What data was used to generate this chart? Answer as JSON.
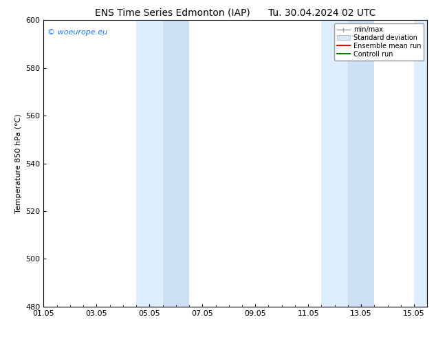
{
  "title_left": "ENS Time Series Edmonton (IAP)",
  "title_right": "Tu. 30.04.2024 02 UTC",
  "ylabel": "Temperature 850 hPa (°C)",
  "xlim": [
    0,
    14.5
  ],
  "ylim": [
    480,
    600
  ],
  "yticks": [
    480,
    500,
    520,
    540,
    560,
    580,
    600
  ],
  "xtick_labels": [
    "01.05",
    "03.05",
    "05.05",
    "07.05",
    "09.05",
    "11.05",
    "13.05",
    "15.05"
  ],
  "xtick_positions": [
    0,
    2,
    4,
    6,
    8,
    10,
    12,
    14
  ],
  "shaded_regions": [
    {
      "xmin": 3.5,
      "xmax": 4.5,
      "color": "#ddeeff"
    },
    {
      "xmin": 4.5,
      "xmax": 5.5,
      "color": "#cce0f5"
    },
    {
      "xmin": 10.5,
      "xmax": 11.5,
      "color": "#ddeeff"
    },
    {
      "xmin": 11.5,
      "xmax": 12.5,
      "color": "#cce0f5"
    },
    {
      "xmin": 14.0,
      "xmax": 14.5,
      "color": "#ddeeff"
    }
  ],
  "watermark_text": "© woeurope.eu",
  "watermark_color": "#1a75ff",
  "legend_items": [
    {
      "label": "min/max",
      "color": "#aaaaaa",
      "style": "minmax"
    },
    {
      "label": "Standard deviation",
      "color": "#d6eaf8",
      "style": "patch"
    },
    {
      "label": "Ensemble mean run",
      "color": "red",
      "style": "line",
      "lw": 1.5
    },
    {
      "label": "Controll run",
      "color": "green",
      "style": "line",
      "lw": 1.5
    }
  ],
  "bg_color": "#ffffff",
  "plot_bg_color": "#ffffff",
  "border_color": "#000000",
  "title_fontsize": 10,
  "tick_fontsize": 8,
  "ylabel_fontsize": 8,
  "legend_fontsize": 7
}
